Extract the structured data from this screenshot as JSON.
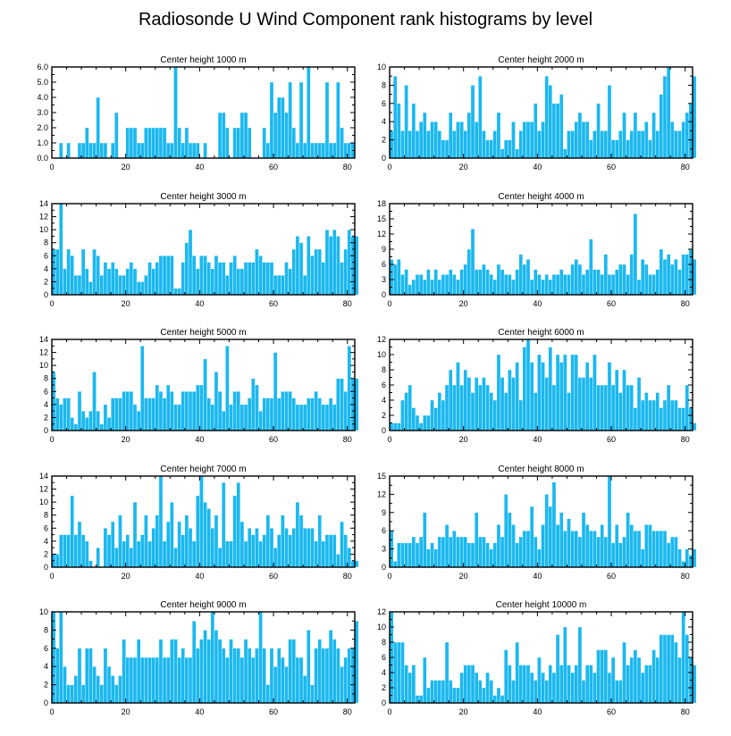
{
  "title": "Radiosonde U Wind Component rank histograms by level",
  "colors": {
    "bar": "#1bb8f0",
    "axis": "#000000",
    "background": "#ffffff"
  },
  "chart_data": [
    {
      "type": "bar",
      "title": "Center height 1000 m",
      "xlim": [
        0,
        82
      ],
      "xticks": [
        0,
        20,
        40,
        60,
        80
      ],
      "ylim": [
        0,
        6
      ],
      "yticks": [
        {
          "v": 0,
          "label": "0.0"
        },
        {
          "v": 1,
          "label": "1.0"
        },
        {
          "v": 2,
          "label": "2.0"
        },
        {
          "v": 3,
          "label": "3.0"
        },
        {
          "v": 4,
          "label": "4.0"
        },
        {
          "v": 5,
          "label": "5.0"
        },
        {
          "v": 6,
          "label": "6.0"
        }
      ],
      "values": [
        0,
        0,
        1,
        0,
        1,
        0,
        0,
        1,
        1,
        2,
        1,
        1,
        4,
        1,
        1,
        0,
        1,
        3,
        0,
        0,
        2,
        2,
        2,
        1,
        1,
        2,
        2,
        2,
        2,
        2,
        2,
        1,
        1,
        6,
        2,
        1,
        2,
        1,
        1,
        1,
        0,
        1,
        0,
        0,
        0,
        3,
        3,
        2,
        0,
        2,
        2,
        3,
        3,
        2,
        0,
        0,
        0,
        2,
        1,
        5,
        3,
        4,
        4,
        3,
        5,
        2,
        1,
        5,
        1,
        6,
        1,
        1,
        1,
        1,
        5,
        1,
        1,
        5,
        2,
        1,
        1,
        1
      ]
    },
    {
      "type": "bar",
      "title": "Center height 2000 m",
      "xlim": [
        0,
        82
      ],
      "xticks": [
        0,
        20,
        40,
        60,
        80
      ],
      "ylim": [
        0,
        10
      ],
      "yticks": [
        {
          "v": 0,
          "label": "0"
        },
        {
          "v": 2,
          "label": "2"
        },
        {
          "v": 4,
          "label": "4"
        },
        {
          "v": 6,
          "label": "6"
        },
        {
          "v": 8,
          "label": "8"
        },
        {
          "v": 10,
          "label": "10"
        }
      ],
      "values": [
        3,
        9,
        6,
        3,
        8,
        3,
        6,
        3,
        4,
        5,
        3,
        4,
        4,
        3,
        2,
        2,
        5,
        3,
        4,
        4,
        3,
        5,
        8,
        4,
        9,
        3,
        2,
        2,
        3,
        5,
        1,
        2,
        2,
        4,
        1,
        3,
        4,
        4,
        4,
        6,
        3,
        4,
        9,
        8,
        6,
        6,
        7,
        1,
        3,
        3,
        4,
        5,
        4,
        4,
        2,
        3,
        6,
        3,
        3,
        8,
        2,
        2,
        3,
        5,
        2,
        3,
        5,
        3,
        3,
        4,
        2,
        5,
        3,
        7,
        9,
        10,
        4,
        3,
        3,
        4,
        5,
        6,
        9
      ]
    },
    {
      "type": "bar",
      "title": "Center height 3000 m",
      "xlim": [
        0,
        82
      ],
      "xticks": [
        0,
        20,
        40,
        60,
        80
      ],
      "ylim": [
        0,
        14
      ],
      "yticks": [
        {
          "v": 0,
          "label": "0"
        },
        {
          "v": 2,
          "label": "2"
        },
        {
          "v": 4,
          "label": "4"
        },
        {
          "v": 6,
          "label": "6"
        },
        {
          "v": 8,
          "label": "8"
        },
        {
          "v": 10,
          "label": "10"
        },
        {
          "v": 12,
          "label": "12"
        },
        {
          "v": 14,
          "label": "14"
        }
      ],
      "values": [
        7,
        7,
        14,
        4,
        7,
        6,
        3,
        3,
        7,
        4,
        2,
        7,
        6,
        3,
        5,
        4,
        5,
        4,
        3,
        3,
        4,
        5,
        4,
        2,
        2,
        3,
        5,
        4,
        5,
        6,
        6,
        6,
        6,
        1,
        1,
        5,
        8,
        10,
        6,
        4,
        6,
        6,
        5,
        4,
        6,
        5,
        5,
        3,
        5,
        6,
        4,
        4,
        5,
        5,
        5,
        7,
        6,
        5,
        5,
        5,
        3,
        3,
        3,
        5,
        4,
        7,
        9,
        8,
        3,
        9,
        6,
        7,
        7,
        5,
        10,
        9,
        10,
        9,
        5,
        7,
        10,
        9,
        9
      ]
    },
    {
      "type": "bar",
      "title": "Center height 4000 m",
      "xlim": [
        0,
        82
      ],
      "xticks": [
        0,
        20,
        40,
        60,
        80
      ],
      "ylim": [
        0,
        18
      ],
      "yticks": [
        {
          "v": 0,
          "label": "0"
        },
        {
          "v": 3,
          "label": "3"
        },
        {
          "v": 6,
          "label": "6"
        },
        {
          "v": 9,
          "label": "9"
        },
        {
          "v": 12,
          "label": "12"
        },
        {
          "v": 15,
          "label": "15"
        },
        {
          "v": 18,
          "label": "18"
        }
      ],
      "values": [
        7,
        6,
        7,
        4,
        5,
        2,
        3,
        4,
        4,
        3,
        5,
        3,
        5,
        3,
        4,
        4,
        5,
        4,
        3,
        5,
        6,
        9,
        13,
        5,
        5,
        6,
        5,
        4,
        3,
        6,
        5,
        4,
        4,
        3,
        5,
        8,
        6,
        7,
        3,
        5,
        4,
        3,
        4,
        3,
        4,
        4,
        5,
        4,
        4,
        6,
        7,
        6,
        4,
        5,
        11,
        5,
        5,
        4,
        8,
        4,
        4,
        5,
        6,
        6,
        4,
        8,
        16,
        3,
        7,
        6,
        4,
        4,
        5,
        9,
        7,
        8,
        6,
        7,
        5,
        8,
        8,
        9,
        7
      ]
    },
    {
      "type": "bar",
      "title": "Center height 5000 m",
      "xlim": [
        0,
        82
      ],
      "xticks": [
        0,
        20,
        40,
        60,
        80
      ],
      "ylim": [
        0,
        14
      ],
      "yticks": [
        {
          "v": 0,
          "label": "0"
        },
        {
          "v": 2,
          "label": "2"
        },
        {
          "v": 4,
          "label": "4"
        },
        {
          "v": 6,
          "label": "6"
        },
        {
          "v": 8,
          "label": "8"
        },
        {
          "v": 10,
          "label": "10"
        },
        {
          "v": 12,
          "label": "12"
        },
        {
          "v": 14,
          "label": "14"
        }
      ],
      "values": [
        9,
        5,
        4,
        5,
        5,
        2,
        1,
        6,
        3,
        2,
        3,
        9,
        3,
        1,
        4,
        2,
        5,
        5,
        5,
        6,
        6,
        6,
        4,
        3,
        13,
        5,
        5,
        5,
        7,
        6,
        5,
        7,
        6,
        4,
        4,
        6,
        6,
        6,
        6,
        7,
        7,
        11,
        5,
        4,
        9,
        6,
        3,
        13,
        4,
        6,
        6,
        4,
        4,
        5,
        8,
        7,
        3,
        5,
        5,
        5,
        12,
        5,
        6,
        6,
        6,
        5,
        4,
        4,
        4,
        5,
        5,
        6,
        5,
        4,
        4,
        5,
        4,
        8,
        8,
        6,
        13,
        8,
        8
      ]
    },
    {
      "type": "bar",
      "title": "Center height 6000 m",
      "xlim": [
        0,
        82
      ],
      "xticks": [
        0,
        20,
        40,
        60,
        80
      ],
      "ylim": [
        0,
        12
      ],
      "yticks": [
        {
          "v": 0,
          "label": "0"
        },
        {
          "v": 2,
          "label": "2"
        },
        {
          "v": 4,
          "label": "4"
        },
        {
          "v": 6,
          "label": "6"
        },
        {
          "v": 8,
          "label": "8"
        },
        {
          "v": 10,
          "label": "10"
        },
        {
          "v": 12,
          "label": "12"
        }
      ],
      "values": [
        1,
        1,
        1,
        4,
        5,
        6,
        3,
        2,
        1,
        2,
        2,
        4,
        3,
        5,
        4,
        6,
        8,
        6,
        9,
        6,
        8,
        7,
        5,
        7,
        6,
        7,
        6,
        5,
        4,
        10,
        7,
        5,
        8,
        7,
        9,
        4,
        11,
        12,
        9,
        5,
        10,
        9,
        7,
        11,
        6,
        10,
        9,
        10,
        5,
        10,
        10,
        7,
        7,
        9,
        7,
        10,
        6,
        6,
        6,
        9,
        6,
        8,
        5,
        8,
        6,
        6,
        3,
        7,
        4,
        5,
        4,
        4,
        5,
        3,
        4,
        6,
        4,
        4,
        3,
        3,
        6,
        3,
        1
      ]
    },
    {
      "type": "bar",
      "title": "Center height 7000 m",
      "xlim": [
        0,
        82
      ],
      "xticks": [
        0,
        20,
        40,
        60,
        80
      ],
      "ylim": [
        0,
        14
      ],
      "yticks": [
        {
          "v": 0,
          "label": "0"
        },
        {
          "v": 2,
          "label": "2"
        },
        {
          "v": 4,
          "label": "4"
        },
        {
          "v": 6,
          "label": "6"
        },
        {
          "v": 8,
          "label": "8"
        },
        {
          "v": 10,
          "label": "10"
        },
        {
          "v": 12,
          "label": "12"
        },
        {
          "v": 14,
          "label": "14"
        }
      ],
      "values": [
        2,
        2,
        5,
        5,
        5,
        11,
        5,
        7,
        5,
        4,
        1,
        0,
        3,
        0,
        6,
        5,
        7,
        3,
        8,
        4,
        5,
        3,
        10,
        4,
        5,
        8,
        4,
        6,
        8,
        14,
        4,
        7,
        10,
        3,
        7,
        5,
        8,
        6,
        4,
        11,
        14,
        10,
        9,
        6,
        8,
        3,
        13,
        4,
        4,
        11,
        13,
        7,
        4,
        6,
        5,
        6,
        4,
        5,
        8,
        6,
        3,
        5,
        8,
        6,
        5,
        6,
        10,
        8,
        6,
        6,
        6,
        4,
        8,
        4,
        5,
        5,
        5,
        2,
        7,
        5,
        3,
        1,
        1
      ]
    },
    {
      "type": "bar",
      "title": "Center height 8000 m",
      "xlim": [
        0,
        82
      ],
      "xticks": [
        0,
        20,
        40,
        60,
        80
      ],
      "ylim": [
        0,
        15
      ],
      "yticks": [
        {
          "v": 0,
          "label": "0"
        },
        {
          "v": 3,
          "label": "3"
        },
        {
          "v": 6,
          "label": "6"
        },
        {
          "v": 9,
          "label": "9"
        },
        {
          "v": 12,
          "label": "12"
        },
        {
          "v": 15,
          "label": "15"
        }
      ],
      "values": [
        6,
        1,
        4,
        4,
        4,
        4,
        5,
        4,
        5,
        9,
        3,
        4,
        3,
        5,
        5,
        7,
        5,
        6,
        5,
        5,
        5,
        4,
        4,
        9,
        5,
        5,
        4,
        3,
        4,
        7,
        5,
        12,
        9,
        7,
        4,
        5,
        6,
        6,
        10,
        5,
        3,
        7,
        12,
        10,
        14,
        7,
        9,
        6,
        8,
        6,
        6,
        5,
        9,
        7,
        6,
        6,
        5,
        7,
        5,
        15,
        4,
        7,
        4,
        5,
        9,
        7,
        6,
        6,
        3,
        7,
        7,
        6,
        6,
        6,
        6,
        4,
        5,
        5,
        3,
        1,
        3,
        2,
        3
      ]
    },
    {
      "type": "bar",
      "title": "Center height 9000 m",
      "xlim": [
        0,
        82
      ],
      "xticks": [
        0,
        20,
        40,
        60,
        80
      ],
      "ylim": [
        0,
        10
      ],
      "yticks": [
        {
          "v": 0,
          "label": "0"
        },
        {
          "v": 2,
          "label": "2"
        },
        {
          "v": 4,
          "label": "4"
        },
        {
          "v": 6,
          "label": "6"
        },
        {
          "v": 8,
          "label": "8"
        },
        {
          "v": 10,
          "label": "10"
        }
      ],
      "values": [
        10,
        6,
        10,
        4,
        2,
        2,
        3,
        6,
        2,
        6,
        6,
        4,
        3,
        2,
        6,
        4,
        3,
        2,
        3,
        7,
        5,
        5,
        5,
        7,
        5,
        5,
        5,
        5,
        5,
        7,
        5,
        5,
        7,
        7,
        5,
        6,
        5,
        5,
        9,
        6,
        7,
        8,
        7,
        10,
        8,
        7,
        6,
        5,
        7,
        6,
        6,
        5,
        7,
        6,
        5,
        6,
        10,
        6,
        2,
        6,
        4,
        6,
        5,
        4,
        7,
        7,
        5,
        5,
        3,
        8,
        2,
        6,
        7,
        6,
        6,
        8,
        7,
        6,
        4,
        5,
        6,
        6,
        9
      ]
    },
    {
      "type": "bar",
      "title": "Center height 10000 m",
      "xlim": [
        0,
        82
      ],
      "xticks": [
        0,
        20,
        40,
        60,
        80
      ],
      "ylim": [
        0,
        12
      ],
      "yticks": [
        {
          "v": 0,
          "label": "0"
        },
        {
          "v": 2,
          "label": "2"
        },
        {
          "v": 4,
          "label": "4"
        },
        {
          "v": 6,
          "label": "6"
        },
        {
          "v": 8,
          "label": "8"
        },
        {
          "v": 10,
          "label": "10"
        },
        {
          "v": 12,
          "label": "12"
        }
      ],
      "values": [
        12,
        8,
        8,
        8,
        5,
        4,
        5,
        1,
        1,
        6,
        2,
        3,
        3,
        3,
        3,
        8,
        3,
        2,
        2,
        4,
        5,
        5,
        5,
        4,
        3,
        2,
        4,
        3,
        1,
        2,
        1,
        7,
        5,
        3,
        8,
        5,
        5,
        5,
        4,
        3,
        6,
        4,
        3,
        5,
        4,
        9,
        5,
        10,
        5,
        4,
        5,
        10,
        3,
        5,
        5,
        4,
        7,
        7,
        7,
        4,
        6,
        3,
        3,
        8,
        5,
        6,
        7,
        6,
        4,
        5,
        5,
        7,
        6,
        9,
        9,
        9,
        9,
        8,
        6,
        12,
        9,
        6,
        5
      ]
    }
  ]
}
